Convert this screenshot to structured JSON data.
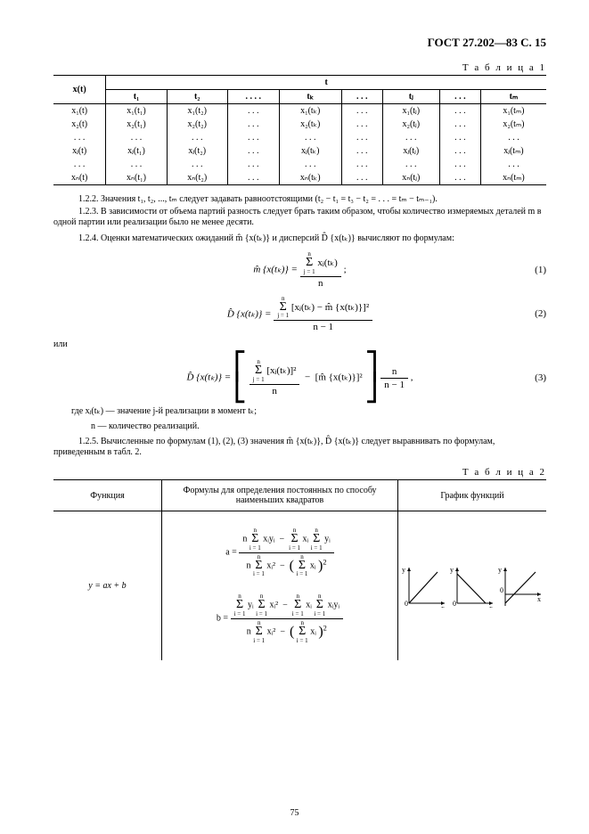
{
  "header": "ГОСТ 27.202—83 С. 15",
  "table1": {
    "label": "Т а б л и ц а  1",
    "corner": "x(t)",
    "grouphdr": "t",
    "cols": [
      "t₁",
      "t₂",
      ". . . .",
      "tₖ",
      ". . .",
      "tⱼ",
      ". . .",
      "tₘ"
    ],
    "rows": [
      [
        "x₁(t)",
        "x₁(t₁)",
        "x₁(t₂)",
        ". . .",
        "x₁(tₖ)",
        ". . .",
        "x₁(tⱼ)",
        ". . .",
        "x₁(tₘ)"
      ],
      [
        "x₂(t)",
        "x₂(t₁)",
        "x₂(t₂)",
        ". . .",
        "x₂(tₖ)",
        ". . .",
        "x₂(tⱼ)",
        ". . .",
        "x₂(tₘ)"
      ],
      [
        ". . .",
        ". . .",
        ". . .",
        ". . .",
        ". . .",
        ". . .",
        ". . .",
        ". . .",
        ". . ."
      ],
      [
        "xⱼ(t)",
        "xⱼ(t₁)",
        "xⱼ(t₂)",
        ". . .",
        "xⱼ(tₖ)",
        ". . .",
        "xⱼ(tⱼ)",
        ". . .",
        "xⱼ(tₘ)"
      ],
      [
        ". . .",
        ". . .",
        ". . .",
        ". . .",
        ". . .",
        ". . .",
        ". . .",
        ". . .",
        ". . ."
      ],
      [
        "xₙ(t)",
        "xₙ(t₁)",
        "xₙ(t₂)",
        ". . .",
        "xₙ(tₖ)",
        ". . .",
        "xₙ(tⱼ)",
        ". . .",
        "xₙ(tₘ)"
      ]
    ]
  },
  "p122": "1.2.2. Значения t₁, t₂, ..., tₘ следует задавать равноотстоящими (t₂ − t₁ = t₃ − t₂ = . . . = tₘ − tₘ₋₁).",
  "p123": "1.2.3. В зависимости от объема партий разность следует брать таким образом, чтобы количество измеряемых деталей m в одной партии или реализации было не менее десяти.",
  "p124": "1.2.4. Оценки математических ожиданий  m̂ {x(tₖ)}  и дисперсий  D̂ {x(tₖ)}  вычисляют по формулам:",
  "eq1": {
    "lhs": "m̂ {x(tₖ)} =",
    "num_top": "n",
    "num_bot": "j = 1",
    "num_body": "xⱼ(tₖ)",
    "den": "n",
    "tail": ";",
    "label": "(1)"
  },
  "eq2": {
    "lhs": "D̂ {x(tₖ)} =",
    "num_top": "n",
    "num_bot": "j = 1",
    "num_body": "[xⱼ(tₖ) − m̂ {x(tₖ)}]²",
    "den": "n − 1",
    "label": "(2)"
  },
  "ili": "или",
  "eq3": {
    "lhs": "D̂ {x(tₖ)} =",
    "t1_top": "n",
    "t1_bot": "j = 1",
    "t1_body": "[xⱼ(tₖ)]²",
    "t1_den": "n",
    "minus": "−",
    "t2": "[m̂ {x(tₖ)}]²",
    "outer_num": "n",
    "outer_den": "n − 1",
    "tail": ",",
    "label": "(3)"
  },
  "where1": "где xⱼ(tₖ) — значение  j-й реализации в момент tₖ;",
  "where2": "n — количество реализаций.",
  "p125": "1.2.5. Вычисленные по формулам (1), (2), (3) значения m̂ {x(tₖ)}, D̂ {x(tₖ)} следует выравнивать по формулам, приведенным в табл. 2.",
  "table2": {
    "label": "Т а б л и ц а  2",
    "h1": "Функция",
    "h2": "Формулы для определения постоянных по способу наименьших квадратов",
    "h3": "График функций",
    "fn": "y = ax + b",
    "axes": {
      "y": "y",
      "x": "x",
      "zero": "0"
    },
    "a": {
      "lhs": "a =",
      "num_t1": "n",
      "num_b1": "xᵢyᵢ",
      "num_t2": "−",
      "num_b2a": "xᵢ",
      "num_b2b": "yᵢ",
      "den_t1": "n",
      "den_b1": "xᵢ²",
      "den_t2": "−",
      "den_b2": "xᵢ",
      "den_sq": "2",
      "limtop": "n",
      "limbot": "i = 1"
    },
    "b": {
      "lhs": "b =",
      "num_b1": "yᵢ",
      "num_b2": "xᵢ²",
      "num_t1": "−",
      "num_b3": "xᵢ",
      "num_b4": "xᵢyᵢ",
      "den_t1": "n",
      "den_b1": "xᵢ²",
      "den_t2": "−",
      "den_b2": "xᵢ",
      "den_sq": "2",
      "limtop": "n",
      "limbot": "i = 1"
    }
  },
  "pagenum": "75"
}
